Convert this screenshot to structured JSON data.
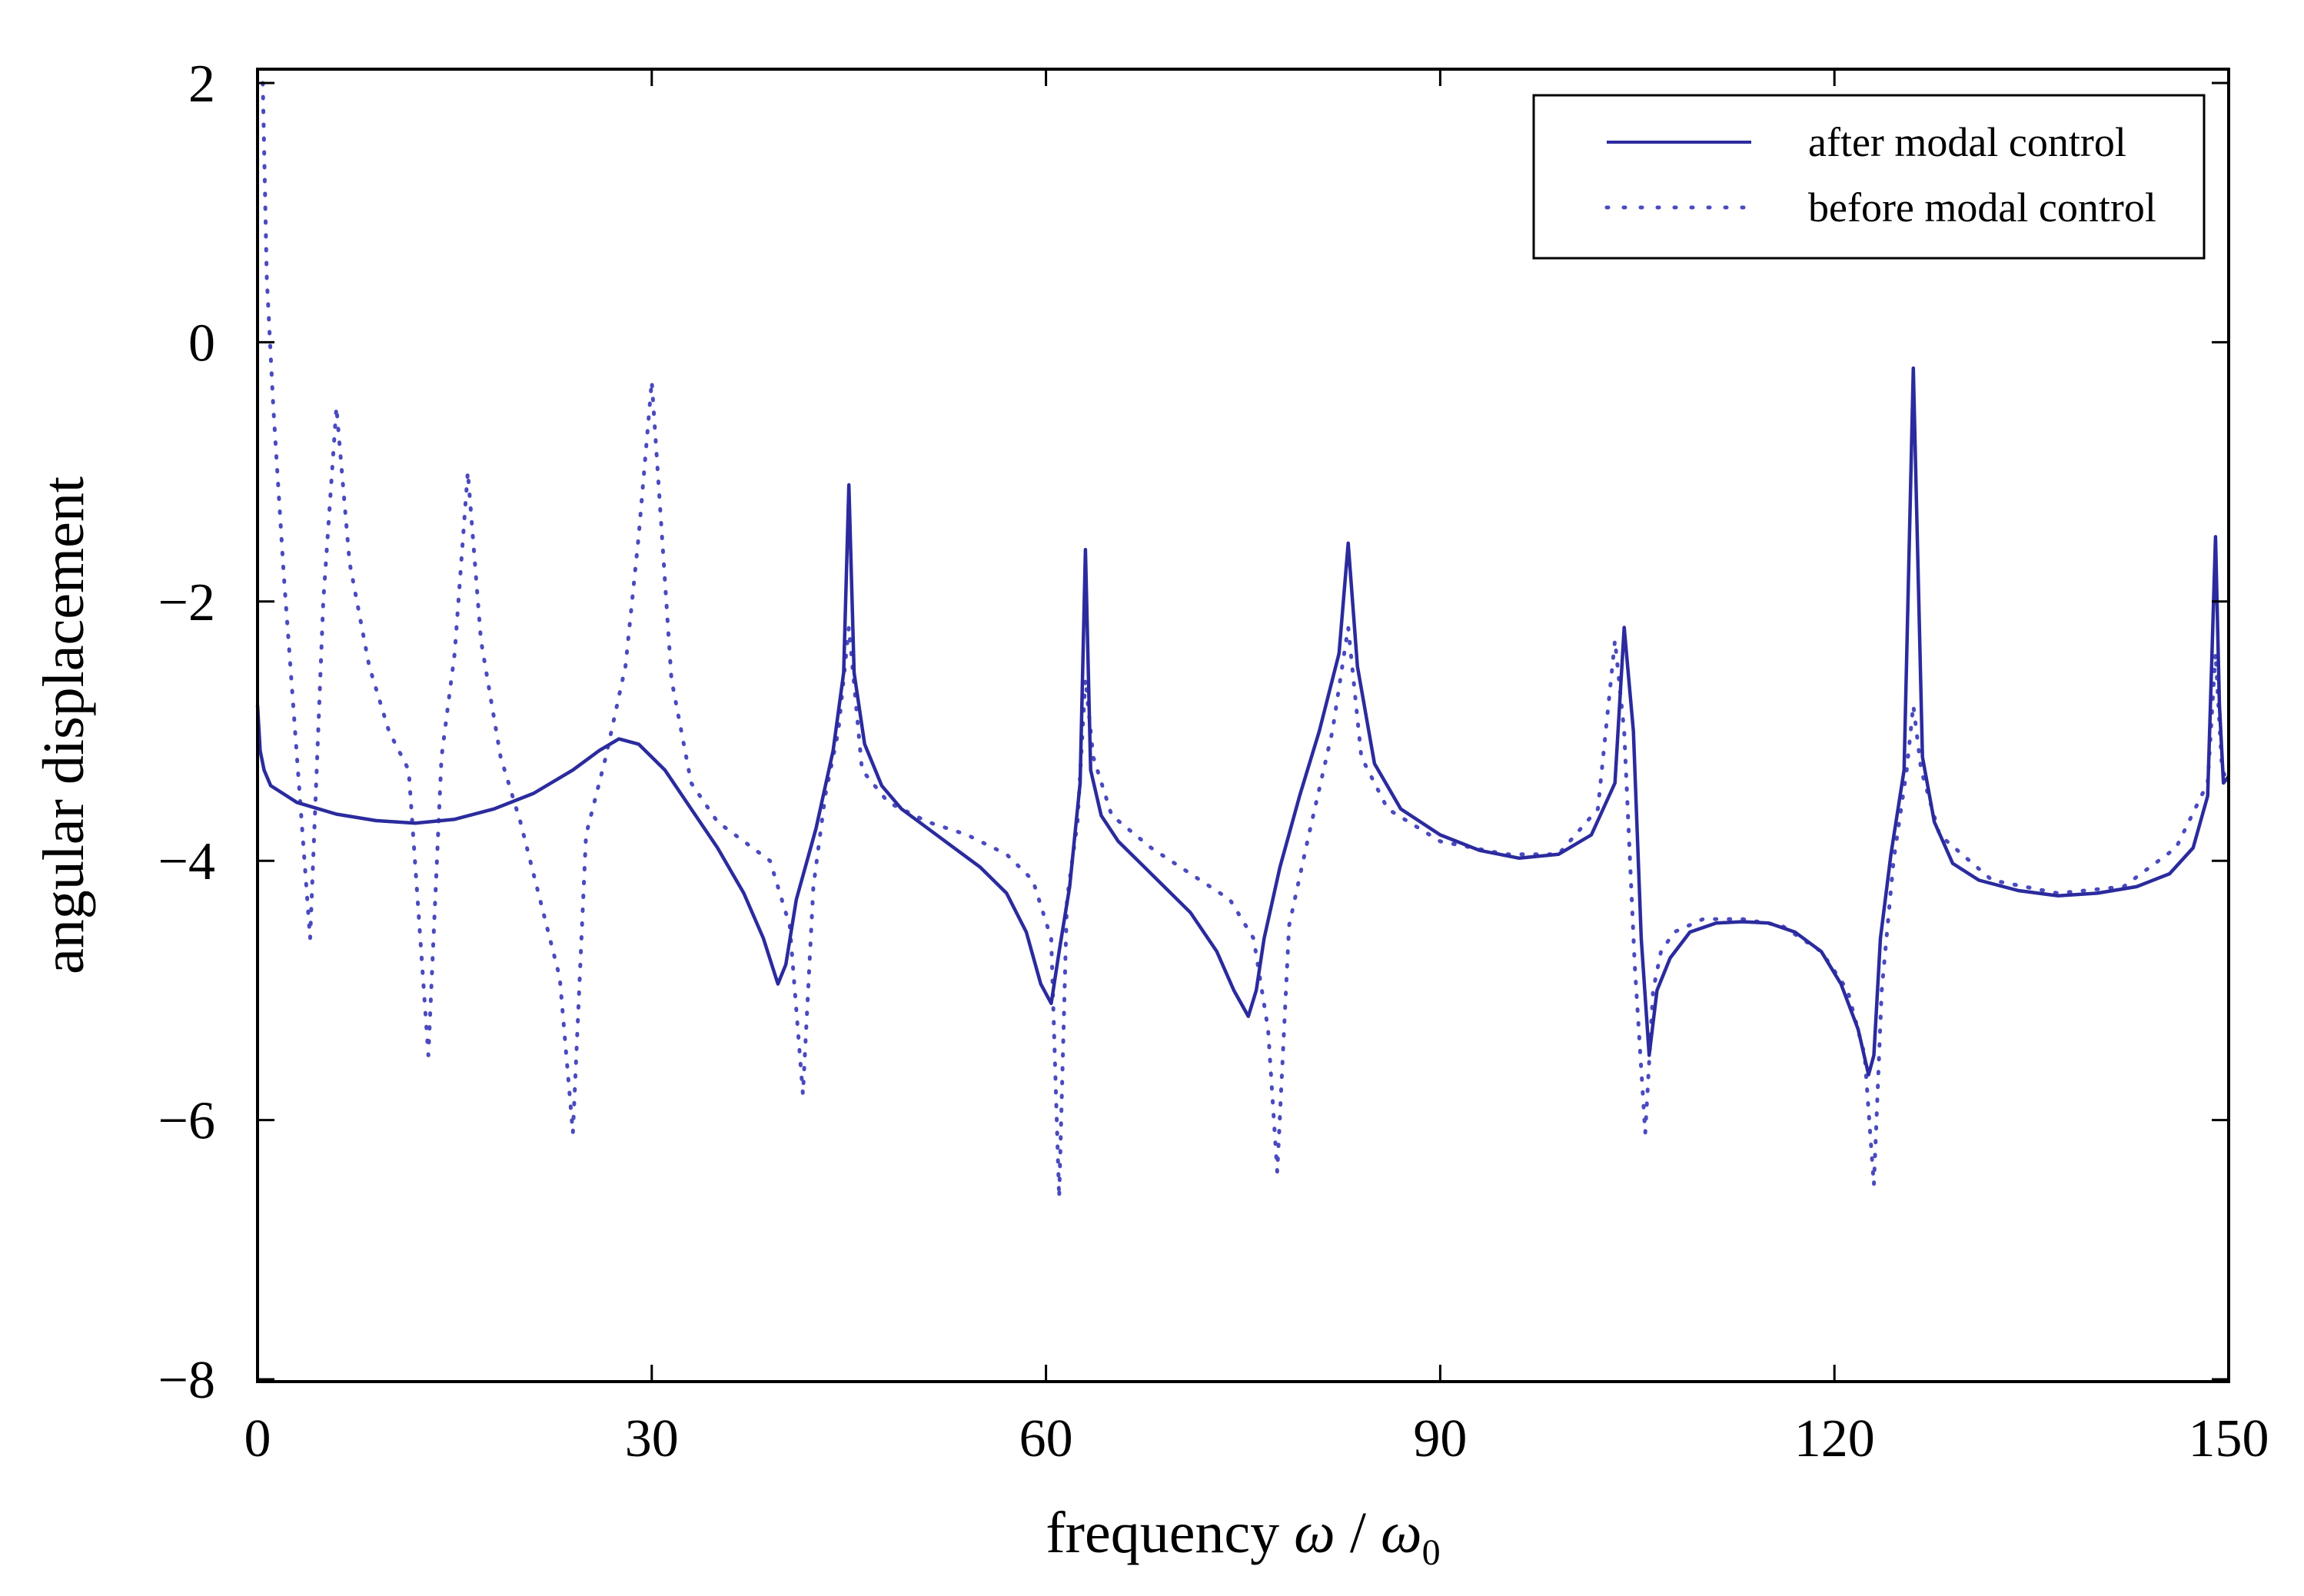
{
  "chart_data": {
    "type": "line",
    "title": "",
    "xlabel": {
      "prefix": "frequency ",
      "omega": "ω",
      "slash": " / ",
      "omega0": "ω",
      "sub": "0"
    },
    "ylabel": "angular displacement",
    "xlim": [
      0,
      150
    ],
    "ylim": [
      -8,
      2
    ],
    "xticks": [
      0,
      30,
      60,
      90,
      120,
      150
    ],
    "yticks": [
      2,
      0,
      -2,
      -4,
      -6,
      -8
    ],
    "xtick_labels": [
      "0",
      "30",
      "60",
      "90",
      "120",
      "150"
    ],
    "ytick_labels": [
      "2",
      "0",
      "−2",
      "−4",
      "−6",
      "−8"
    ],
    "grid": false,
    "legend": {
      "position": "top-right",
      "entries": [
        "after modal control",
        "before modal control"
      ]
    },
    "series": [
      {
        "name": "after modal control",
        "style": "solid",
        "color": "#2b2b9e",
        "x": [
          0,
          0.2,
          0.5,
          1,
          3,
          6,
          9,
          12,
          15,
          18,
          21,
          24,
          26,
          27.5,
          29,
          31,
          33,
          35,
          37,
          38.5,
          39.6,
          40.2,
          41,
          42.5,
          43.8,
          44.6,
          45.0,
          45.4,
          46.2,
          47.5,
          49,
          51,
          53,
          55,
          57,
          58.5,
          59.6,
          60.4,
          61,
          61.8,
          62.6,
          63.0,
          63.4,
          64.2,
          65.5,
          67,
          69,
          71,
          73,
          74.3,
          75.4,
          76.0,
          76.6,
          77.8,
          79.3,
          80.8,
          82.3,
          83.0,
          83.7,
          85,
          87,
          90,
          93,
          96,
          99,
          101.5,
          103.3,
          104.0,
          104.7,
          105.3,
          105.9,
          106.5,
          107.5,
          109,
          111,
          113,
          115,
          117,
          119,
          120.5,
          121.8,
          122.6,
          123.0,
          123.5,
          124.3,
          125.3,
          126.0,
          126.7,
          127.6,
          129,
          131,
          134,
          137,
          140,
          143,
          145.5,
          147.3,
          148.4,
          149.0,
          149.3,
          149.6,
          150
        ],
        "values": [
          -2.8,
          -3.15,
          -3.3,
          -3.42,
          -3.55,
          -3.64,
          -3.69,
          -3.71,
          -3.68,
          -3.6,
          -3.48,
          -3.3,
          -3.15,
          -3.06,
          -3.1,
          -3.3,
          -3.6,
          -3.9,
          -4.25,
          -4.6,
          -4.95,
          -4.8,
          -4.3,
          -3.75,
          -3.15,
          -2.55,
          -1.1,
          -2.55,
          -3.1,
          -3.42,
          -3.6,
          -3.75,
          -3.9,
          -4.05,
          -4.25,
          -4.55,
          -4.95,
          -5.1,
          -4.7,
          -4.2,
          -3.4,
          -1.6,
          -3.3,
          -3.65,
          -3.85,
          -4.0,
          -4.2,
          -4.4,
          -4.7,
          -5.0,
          -5.2,
          -5.0,
          -4.6,
          -4.05,
          -3.5,
          -3.0,
          -2.4,
          -1.55,
          -2.5,
          -3.25,
          -3.6,
          -3.8,
          -3.92,
          -3.98,
          -3.95,
          -3.8,
          -3.4,
          -2.2,
          -3.0,
          -4.6,
          -5.5,
          -5.0,
          -4.75,
          -4.55,
          -4.48,
          -4.47,
          -4.48,
          -4.55,
          -4.7,
          -4.95,
          -5.3,
          -5.65,
          -5.5,
          -4.6,
          -3.95,
          -3.3,
          -0.2,
          -3.2,
          -3.7,
          -4.02,
          -4.15,
          -4.23,
          -4.27,
          -4.25,
          -4.2,
          -4.1,
          -3.9,
          -3.5,
          -1.5,
          -2.8,
          -3.4,
          -3.35
        ]
      },
      {
        "name": "before modal control",
        "style": "dotted",
        "color": "#4a4abf",
        "x": [
          0.4,
          0.7,
          1.2,
          2,
          3,
          4,
          5,
          6,
          7,
          8.5,
          10,
          11.5,
          13,
          14,
          15,
          16,
          17,
          18.5,
          20,
          21.5,
          23,
          24,
          25,
          26.5,
          28,
          29,
          30,
          31.5,
          33,
          35,
          37,
          39,
          40.5,
          41.5,
          42.3,
          43.2,
          44.2,
          45.0,
          46,
          48,
          51,
          54,
          57,
          59,
          60.4,
          61.0,
          61.6,
          62.4,
          63.0,
          63.6,
          65,
          68,
          71,
          74,
          75.8,
          76.9,
          77.6,
          78.5,
          80,
          81.8,
          83.0,
          84,
          86,
          90,
          95,
          99,
          102,
          103.3,
          104.0,
          104.8,
          105.6,
          106.2,
          106.8,
          107.8,
          110,
          113,
          116,
          119,
          121,
          122.3,
          123.0,
          123.6,
          124.5,
          125.5,
          126.0,
          126.6,
          128,
          132,
          137,
          142,
          146,
          148.4,
          149.0,
          149.5,
          150
        ],
        "values": [
          2.0,
          0.5,
          -0.5,
          -1.8,
          -3.2,
          -4.6,
          -2.0,
          -0.5,
          -1.7,
          -2.5,
          -3.0,
          -3.3,
          -5.5,
          -3.2,
          -2.4,
          -1.0,
          -2.3,
          -3.2,
          -3.7,
          -4.3,
          -4.9,
          -6.1,
          -3.8,
          -3.2,
          -2.5,
          -1.5,
          -0.3,
          -2.6,
          -3.4,
          -3.7,
          -3.85,
          -4.0,
          -4.5,
          -5.8,
          -4.2,
          -3.5,
          -3.0,
          -2.2,
          -3.3,
          -3.55,
          -3.7,
          -3.8,
          -3.95,
          -4.15,
          -4.6,
          -6.6,
          -4.3,
          -3.7,
          -2.6,
          -3.2,
          -3.65,
          -3.9,
          -4.1,
          -4.3,
          -4.6,
          -5.3,
          -6.4,
          -4.5,
          -3.8,
          -3.0,
          -2.2,
          -3.2,
          -3.6,
          -3.85,
          -3.95,
          -3.95,
          -3.6,
          -2.3,
          -3.0,
          -4.8,
          -6.1,
          -5.0,
          -4.7,
          -4.55,
          -4.45,
          -4.45,
          -4.5,
          -4.7,
          -5.0,
          -5.5,
          -6.5,
          -5.0,
          -4.0,
          -3.3,
          -2.8,
          -3.3,
          -3.8,
          -4.15,
          -4.25,
          -4.2,
          -3.9,
          -3.4,
          -2.4,
          -3.3,
          -3.4
        ]
      }
    ]
  }
}
